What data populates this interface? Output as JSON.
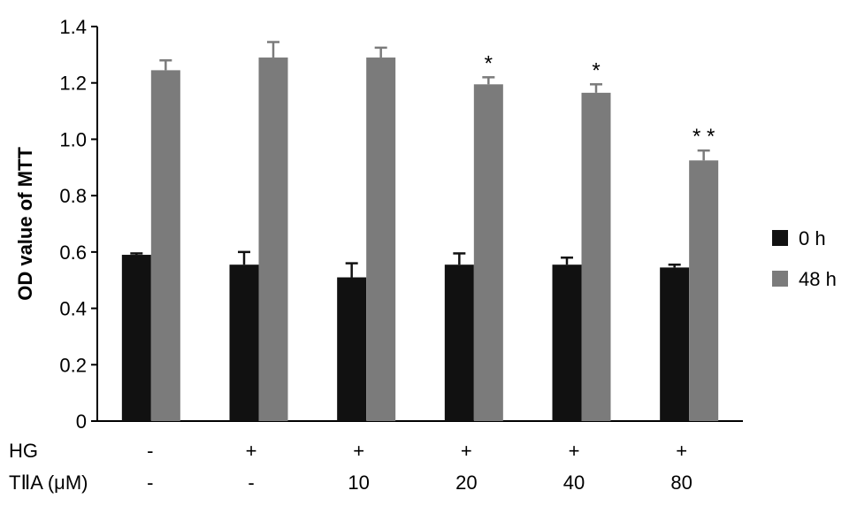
{
  "chart_data": {
    "type": "bar",
    "ylabel": "OD value of MTT",
    "ylim": [
      0,
      1.4
    ],
    "y_ticks": [
      {
        "value": 0,
        "label": "0"
      },
      {
        "value": 0.2,
        "label": "0.2"
      },
      {
        "value": 0.4,
        "label": "0.4"
      },
      {
        "value": 0.6,
        "label": "0.6"
      },
      {
        "value": 0.8,
        "label": "0.8"
      },
      {
        "value": 1.0,
        "label": "1.0"
      },
      {
        "value": 1.2,
        "label": "1.2"
      },
      {
        "value": 1.4,
        "label": "1.4"
      }
    ],
    "row_labels": [
      "HG",
      "TⅡA (μM)"
    ],
    "groups": [
      {
        "hg": "-",
        "tiia": "-"
      },
      {
        "hg": "+",
        "tiia": "-"
      },
      {
        "hg": "+",
        "tiia": "10"
      },
      {
        "hg": "+",
        "tiia": "20"
      },
      {
        "hg": "+",
        "tiia": "40"
      },
      {
        "hg": "+",
        "tiia": "80"
      }
    ],
    "series": [
      {
        "name": "0 h",
        "color": "#111111",
        "values": [
          0.59,
          0.555,
          0.51,
          0.555,
          0.555,
          0.545
        ],
        "errors": [
          0.005,
          0.045,
          0.05,
          0.04,
          0.025,
          0.01
        ]
      },
      {
        "name": "48 h",
        "color": "#7b7b7b",
        "values": [
          1.245,
          1.29,
          1.29,
          1.195,
          1.165,
          0.925
        ],
        "errors": [
          0.035,
          0.055,
          0.035,
          0.025,
          0.03,
          0.035
        ]
      }
    ],
    "annotations": [
      "",
      "",
      "",
      "*",
      "*",
      "* *"
    ],
    "legend_position": "right"
  }
}
